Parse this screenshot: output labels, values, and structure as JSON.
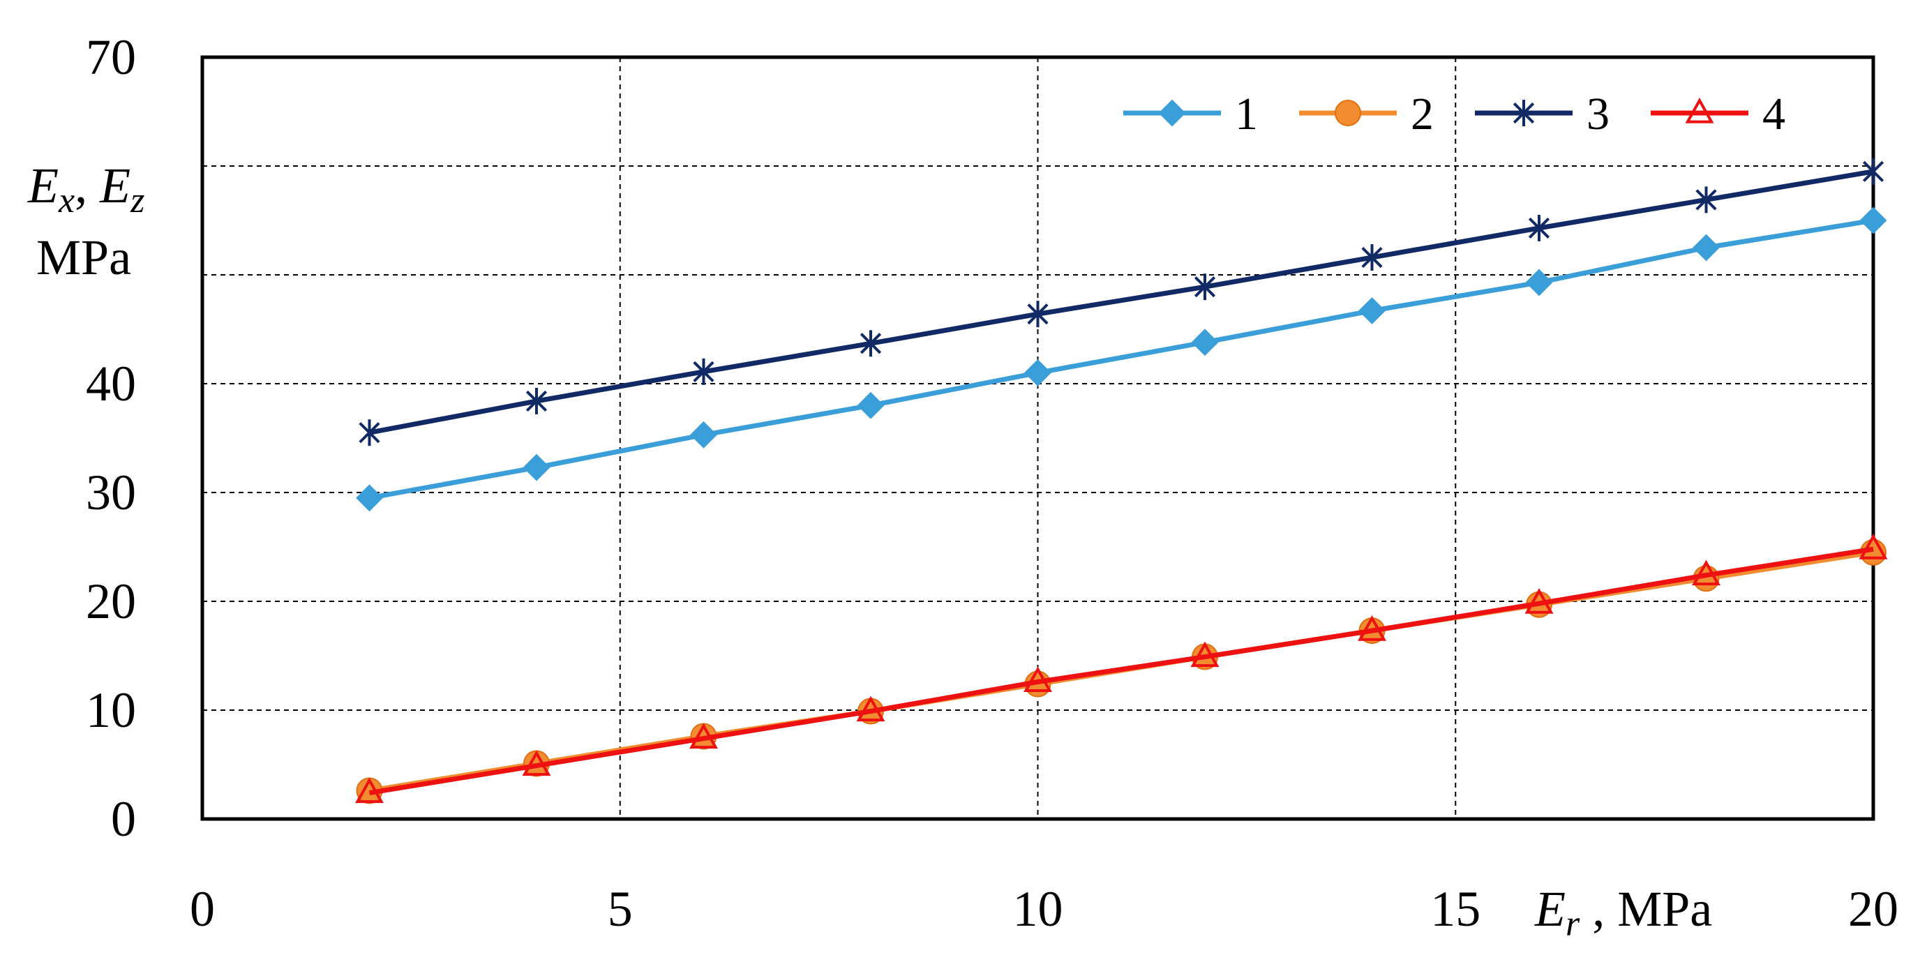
{
  "chart_data": {
    "type": "line",
    "ylabel_main": "E",
    "ylabel_sub1": "x",
    "ylabel_sep": ", ",
    "ylabel_main2": "E",
    "ylabel_sub2": "z",
    "ylabel_unit": "MPa",
    "xlabel_main": "E",
    "xlabel_sub": "r",
    "xlabel_unit": " , MPa",
    "xlim": [
      0,
      20
    ],
    "ylim": [
      0,
      70
    ],
    "x_ticks": [
      "0",
      "5",
      "10",
      "15",
      "20"
    ],
    "y_ticks": [
      "0",
      "10",
      "20",
      "30",
      "40",
      "70"
    ],
    "grid": true,
    "legend_position": "top-right",
    "x": [
      2,
      4,
      6,
      8,
      10,
      12,
      14,
      16,
      18,
      20
    ],
    "series": [
      {
        "name": "1",
        "color": "#3a9fd8",
        "marker": "diamond",
        "values": [
          29.5,
          32.3,
          35.3,
          38.0,
          41.0,
          43.8,
          46.7,
          49.3,
          52.5,
          55.0
        ]
      },
      {
        "name": "2",
        "color": "#f28c30",
        "marker": "circle",
        "values": [
          2.6,
          5.1,
          7.6,
          9.9,
          12.4,
          14.9,
          17.3,
          19.7,
          22.1,
          24.5
        ]
      },
      {
        "name": "3",
        "color": "#112a66",
        "marker": "asterisk",
        "values": [
          35.5,
          38.4,
          41.1,
          43.7,
          46.4,
          48.9,
          51.6,
          54.3,
          56.9,
          59.5
        ]
      },
      {
        "name": "4",
        "color": "#ee1111",
        "marker": "triangle",
        "values": [
          2.4,
          4.9,
          7.4,
          9.9,
          12.6,
          14.9,
          17.3,
          19.8,
          22.4,
          24.8
        ]
      }
    ]
  }
}
